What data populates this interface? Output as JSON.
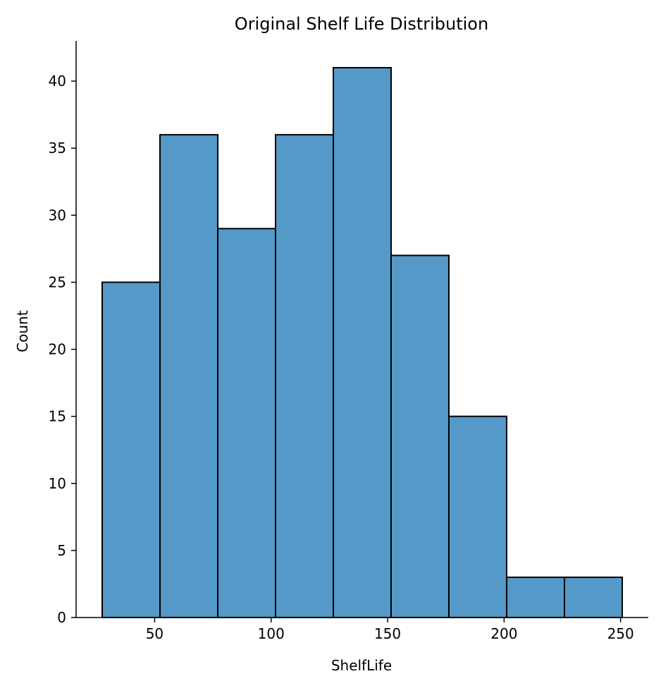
{
  "chart_data": {
    "type": "bar",
    "title": "Original Shelf Life Distribution",
    "xlabel": "ShelfLife",
    "ylabel": "Count",
    "bins": [
      {
        "start": 27.5,
        "end": 52.3,
        "count": 25
      },
      {
        "start": 52.3,
        "end": 77.1,
        "count": 36
      },
      {
        "start": 77.1,
        "end": 101.9,
        "count": 29
      },
      {
        "start": 101.9,
        "end": 126.7,
        "count": 36
      },
      {
        "start": 126.7,
        "end": 151.5,
        "count": 41
      },
      {
        "start": 151.5,
        "end": 176.3,
        "count": 27
      },
      {
        "start": 176.3,
        "end": 201.1,
        "count": 15
      },
      {
        "start": 201.1,
        "end": 225.9,
        "count": 3
      },
      {
        "start": 225.9,
        "end": 250.7,
        "count": 3
      }
    ],
    "xlim": [
      16.3,
      261.9
    ],
    "ylim": [
      0,
      43
    ],
    "xticks": [
      "50",
      "100",
      "150",
      "200",
      "250"
    ],
    "yticks": [
      "0",
      "5",
      "10",
      "15",
      "20",
      "25",
      "30",
      "35",
      "40"
    ],
    "grid": false,
    "colors": {
      "bar_fill": "#5599c8",
      "bar_edge": "#000000"
    }
  }
}
